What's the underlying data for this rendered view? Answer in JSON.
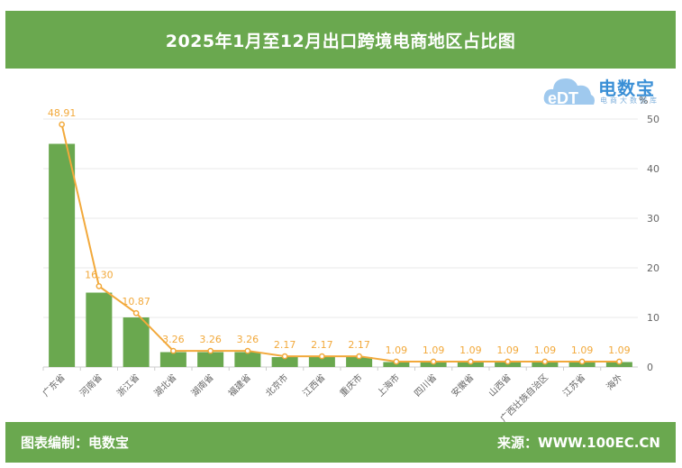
{
  "header": {
    "title": "2025年1月至12月出口跨境电商地区占比图"
  },
  "footer": {
    "left_text": "图表编制：电数宝",
    "right_text": "来源：WWW.100EC.CN"
  },
  "logo": {
    "brand_mark": "eDT",
    "name": "电数宝",
    "subtitle": "电商大数据库"
  },
  "colors": {
    "bar": "#6aa84f",
    "line": "#f2a93b",
    "header_bg": "#6aa84f",
    "grid": "#e8e8e8"
  },
  "chart_data": {
    "type": "bar",
    "title": "2025年1月至12月出口跨境电商地区占比图",
    "categories": [
      "广东省",
      "河南省",
      "浙江省",
      "湖北省",
      "湖南省",
      "福建省",
      "北京市",
      "江西省",
      "重庆市",
      "上海市",
      "四川省",
      "安徽省",
      "山西省",
      "广西壮族自治区",
      "江苏省",
      "海外"
    ],
    "values": [
      48.91,
      16.3,
      10.87,
      3.26,
      3.26,
      3.26,
      2.17,
      2.17,
      2.17,
      1.09,
      1.09,
      1.09,
      1.09,
      1.09,
      1.09,
      1.09
    ],
    "value_labels": [
      "48.91",
      "16.30",
      "10.87",
      "3.26",
      "3.26",
      "3.26",
      "2.17",
      "2.17",
      "2.17",
      "1.09",
      "1.09",
      "1.09",
      "1.09",
      "1.09",
      "1.09",
      "1.09"
    ],
    "series": [
      {
        "type": "bar",
        "values": [
          45.0,
          15.0,
          10.0,
          3.0,
          3.0,
          3.0,
          2.0,
          2.0,
          2.0,
          1.0,
          1.0,
          1.0,
          1.0,
          1.0,
          1.0,
          1.0
        ]
      },
      {
        "type": "line",
        "values": [
          48.91,
          16.3,
          10.87,
          3.26,
          3.26,
          3.26,
          2.17,
          2.17,
          2.17,
          1.09,
          1.09,
          1.09,
          1.09,
          1.09,
          1.09,
          1.09
        ]
      }
    ],
    "y_axis": {
      "position": "right",
      "unit": "%",
      "ylim": [
        0,
        50
      ],
      "ticks": [
        0,
        10,
        20,
        30,
        40,
        50
      ]
    },
    "grid": true,
    "legend": "none"
  }
}
